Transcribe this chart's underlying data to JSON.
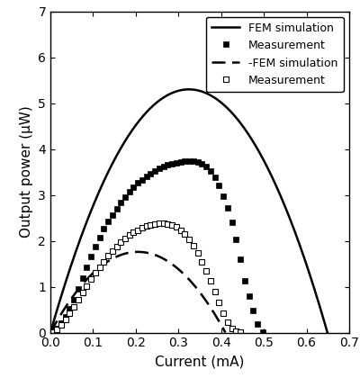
{
  "title": "",
  "xlabel": "Current (mA)",
  "ylabel": "Output power (μW)",
  "xlim": [
    0,
    0.7
  ],
  "ylim": [
    0,
    7
  ],
  "xticks": [
    0.0,
    0.1,
    0.2,
    0.3,
    0.4,
    0.5,
    0.6,
    0.7
  ],
  "yticks": [
    0,
    1,
    2,
    3,
    4,
    5,
    6,
    7
  ],
  "solid_line": {
    "Isc": 0.649,
    "Pmax": 5.3,
    "label": "FEM simulation"
  },
  "dashed_line": {
    "Isc": 0.41,
    "Pmax": 1.76,
    "label": "-FEM simulation"
  },
  "filled_squares": {
    "x": [
      0.005,
      0.015,
      0.025,
      0.035,
      0.045,
      0.055,
      0.065,
      0.075,
      0.085,
      0.095,
      0.105,
      0.115,
      0.125,
      0.135,
      0.145,
      0.155,
      0.165,
      0.175,
      0.185,
      0.195,
      0.205,
      0.215,
      0.225,
      0.235,
      0.245,
      0.255,
      0.265,
      0.275,
      0.285,
      0.295,
      0.305,
      0.315,
      0.325,
      0.335,
      0.345,
      0.355,
      0.365,
      0.375,
      0.385,
      0.395,
      0.405,
      0.415,
      0.425,
      0.435,
      0.445,
      0.455,
      0.465,
      0.475,
      0.485,
      0.498
    ],
    "y": [
      0.03,
      0.1,
      0.2,
      0.35,
      0.52,
      0.72,
      0.95,
      1.18,
      1.42,
      1.65,
      1.88,
      2.08,
      2.26,
      2.42,
      2.57,
      2.7,
      2.83,
      2.95,
      3.07,
      3.17,
      3.26,
      3.33,
      3.4,
      3.47,
      3.53,
      3.58,
      3.62,
      3.65,
      3.68,
      3.7,
      3.72,
      3.73,
      3.74,
      3.74,
      3.72,
      3.68,
      3.62,
      3.52,
      3.38,
      3.2,
      2.98,
      2.72,
      2.4,
      2.03,
      1.6,
      1.13,
      0.8,
      0.48,
      0.18,
      0.01
    ],
    "label": "Measurement"
  },
  "open_squares": {
    "x": [
      0.005,
      0.015,
      0.025,
      0.035,
      0.045,
      0.055,
      0.065,
      0.075,
      0.085,
      0.095,
      0.105,
      0.115,
      0.125,
      0.135,
      0.145,
      0.155,
      0.165,
      0.175,
      0.185,
      0.195,
      0.205,
      0.215,
      0.225,
      0.235,
      0.245,
      0.255,
      0.265,
      0.275,
      0.285,
      0.295,
      0.305,
      0.315,
      0.325,
      0.335,
      0.345,
      0.355,
      0.365,
      0.375,
      0.385,
      0.395,
      0.405,
      0.415,
      0.425,
      0.435,
      0.445
    ],
    "y": [
      0.02,
      0.08,
      0.17,
      0.28,
      0.42,
      0.57,
      0.72,
      0.87,
      1.02,
      1.17,
      1.3,
      1.43,
      1.55,
      1.67,
      1.78,
      1.88,
      1.97,
      2.05,
      2.12,
      2.18,
      2.23,
      2.28,
      2.32,
      2.35,
      2.37,
      2.38,
      2.38,
      2.37,
      2.35,
      2.3,
      2.23,
      2.14,
      2.03,
      1.89,
      1.73,
      1.55,
      1.35,
      1.13,
      0.9,
      0.65,
      0.42,
      0.23,
      0.1,
      0.03,
      0.01
    ],
    "label": "Measurement"
  },
  "line_color": "black",
  "marker_color_filled": "black",
  "marker_color_open": "white",
  "marker_edge_color": "black",
  "marker_size": 5,
  "line_width": 1.8
}
